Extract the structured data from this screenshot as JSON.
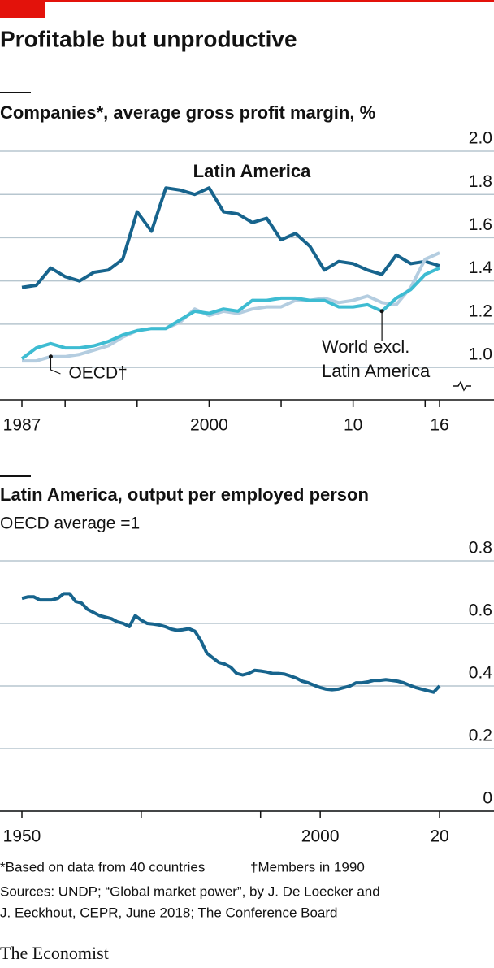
{
  "title": "Profitable but unproductive",
  "footnotes": [
    "*Based on data from 40 countries",
    "†Members in 1990"
  ],
  "sources": [
    "Sources: UNDP; “Global market power”, by J. De Loecker and",
    "J. Eeckhout, CEPR, June 2018; The Conference Board"
  ],
  "logo": "The Economist",
  "chart_data": [
    {
      "type": "line",
      "title": "Companies*, average gross profit margin, %",
      "x": [
        1987,
        1988,
        1989,
        1990,
        1991,
        1992,
        1993,
        1994,
        1995,
        1996,
        1997,
        1998,
        1999,
        2000,
        2001,
        2002,
        2003,
        2004,
        2005,
        2006,
        2007,
        2008,
        2009,
        2010,
        2011,
        2012,
        2013,
        2014,
        2015,
        2016
      ],
      "series": [
        {
          "name": "Latin America",
          "color": "#17648d",
          "values": [
            1.37,
            1.38,
            1.46,
            1.42,
            1.4,
            1.44,
            1.45,
            1.5,
            1.72,
            1.63,
            1.83,
            1.82,
            1.8,
            1.83,
            1.72,
            1.71,
            1.67,
            1.69,
            1.59,
            1.62,
            1.56,
            1.45,
            1.49,
            1.48,
            1.45,
            1.43,
            1.52,
            1.48,
            1.49,
            1.47
          ]
        },
        {
          "name": "OECD†",
          "color": "#b4cde0",
          "values": [
            1.03,
            1.03,
            1.05,
            1.05,
            1.06,
            1.08,
            1.1,
            1.14,
            1.17,
            1.18,
            1.18,
            1.21,
            1.27,
            1.24,
            1.26,
            1.25,
            1.27,
            1.28,
            1.28,
            1.31,
            1.31,
            1.32,
            1.3,
            1.31,
            1.33,
            1.3,
            1.29,
            1.37,
            1.5,
            1.53
          ]
        },
        {
          "name": "World excl. Latin America",
          "color": "#3ebcd2",
          "values": [
            1.04,
            1.09,
            1.11,
            1.09,
            1.09,
            1.1,
            1.12,
            1.15,
            1.17,
            1.18,
            1.18,
            1.22,
            1.26,
            1.25,
            1.27,
            1.26,
            1.31,
            1.31,
            1.32,
            1.32,
            1.31,
            1.31,
            1.28,
            1.28,
            1.29,
            1.26,
            1.32,
            1.36,
            1.43,
            1.46
          ]
        }
      ],
      "xlim": [
        1987,
        2016
      ],
      "xticks": [
        1987,
        {
          "value": 1990,
          "label": null
        },
        {
          "value": 1995,
          "label": null
        },
        2000,
        {
          "value": 2005,
          "label": null
        },
        {
          "value": 2010,
          "label": "10"
        },
        {
          "value": 2015,
          "label": null
        },
        {
          "value": 2016,
          "label": "16"
        }
      ],
      "ylim": [
        0.85,
        2.0
      ],
      "yticks": [
        {
          "value": 1,
          "label": "1.0"
        },
        1.2,
        1.4,
        1.6,
        1.8,
        {
          "value": 2,
          "label": "2.0"
        }
      ],
      "grid": true
    },
    {
      "type": "line",
      "title": "Latin America, output per employed person",
      "subtitle": "OECD average =1",
      "x": [
        1950,
        1951,
        1952,
        1953,
        1954,
        1955,
        1956,
        1957,
        1958,
        1959,
        1960,
        1961,
        1962,
        1963,
        1964,
        1965,
        1966,
        1967,
        1968,
        1969,
        1970,
        1971,
        1972,
        1973,
        1974,
        1975,
        1976,
        1977,
        1978,
        1979,
        1980,
        1981,
        1982,
        1983,
        1984,
        1985,
        1986,
        1987,
        1988,
        1989,
        1990,
        1991,
        1992,
        1993,
        1994,
        1995,
        1996,
        1997,
        1998,
        1999,
        2000,
        2001,
        2002,
        2003,
        2004,
        2005,
        2006,
        2007,
        2008,
        2009,
        2010,
        2011,
        2012,
        2013,
        2014,
        2015,
        2016,
        2017,
        2018,
        2019,
        2020
      ],
      "series": [
        {
          "color": "#17648d",
          "values": [
            0.68,
            0.685,
            0.685,
            0.675,
            0.675,
            0.675,
            0.68,
            0.695,
            0.695,
            0.67,
            0.665,
            0.645,
            0.635,
            0.625,
            0.62,
            0.615,
            0.605,
            0.6,
            0.59,
            0.625,
            0.61,
            0.6,
            0.598,
            0.595,
            0.59,
            0.582,
            0.578,
            0.58,
            0.583,
            0.575,
            0.545,
            0.505,
            0.49,
            0.475,
            0.47,
            0.46,
            0.44,
            0.435,
            0.44,
            0.45,
            0.448,
            0.445,
            0.44,
            0.44,
            0.438,
            0.432,
            0.425,
            0.415,
            0.41,
            0.402,
            0.395,
            0.39,
            0.388,
            0.39,
            0.395,
            0.4,
            0.41,
            0.41,
            0.413,
            0.418,
            0.418,
            0.42,
            0.418,
            0.415,
            0.41,
            0.402,
            0.395,
            0.39,
            0.385,
            0.38,
            0.4
          ]
        }
      ],
      "xlim": [
        1950,
        2020
      ],
      "xticks": [
        1950,
        {
          "value": 1970,
          "label": null
        },
        {
          "value": 1990,
          "label": null
        },
        2000,
        {
          "value": 2020,
          "label": "20"
        }
      ],
      "ylim": [
        0,
        0.8
      ],
      "yticks": [
        0,
        0.2,
        0.4,
        0.6,
        0.8
      ],
      "grid": true
    }
  ]
}
